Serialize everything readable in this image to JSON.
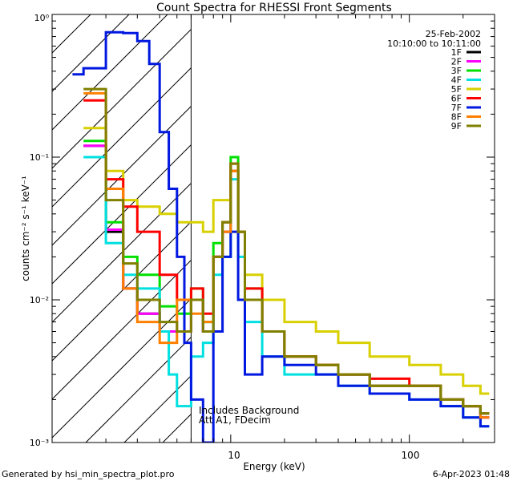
{
  "chart_data": {
    "type": "line",
    "title": "Count Spectra for RHESSI Front Segments",
    "xlabel": "Energy (keV)",
    "ylabel": "counts cm⁻² s⁻¹ keV⁻¹",
    "xscale": "log",
    "yscale": "log",
    "xlim": [
      1,
      300
    ],
    "ylim": [
      0.001,
      1
    ],
    "x_ticks": [
      "10",
      "100"
    ],
    "y_ticks": [
      "10⁻³",
      "10⁻²",
      "10⁻¹",
      "10⁰"
    ],
    "hatched_region_upper_keV": 6,
    "date": "25-Feb-2002",
    "time_range": "10:10:00 to 10:11:00",
    "annotations": [
      "Includes Background",
      "Att A1, FDecim"
    ],
    "footer_left": "Generated by hsi_min_spectra_plot.pro",
    "footer_right": "6-Apr-2023 01:48",
    "series": [
      {
        "name": "1F",
        "color": "#000000",
        "points": [
          [
            1.5,
            0.12
          ],
          [
            2,
            0.03
          ],
          [
            2.5,
            0.012
          ],
          [
            3,
            0.008
          ],
          [
            4,
            0.006
          ],
          [
            5,
            0.006
          ],
          [
            6,
            0.01
          ],
          [
            7,
            0.006
          ],
          [
            8,
            0.02
          ],
          [
            9,
            0.03
          ],
          [
            10,
            0.08
          ],
          [
            11,
            0.03
          ],
          [
            12,
            0.01
          ],
          [
            15,
            0.006
          ],
          [
            20,
            0.004
          ],
          [
            30,
            0.0035
          ],
          [
            40,
            0.003
          ],
          [
            60,
            0.0025
          ],
          [
            100,
            0.0025
          ],
          [
            150,
            0.002
          ],
          [
            200,
            0.0018
          ],
          [
            250,
            0.0015
          ]
        ]
      },
      {
        "name": "2F",
        "color": "#ff00ff",
        "points": [
          [
            1.5,
            0.12
          ],
          [
            2,
            0.031
          ],
          [
            2.5,
            0.012
          ],
          [
            3,
            0.008
          ],
          [
            4,
            0.006
          ],
          [
            5,
            0.006
          ],
          [
            6,
            0.01
          ],
          [
            7,
            0.006
          ],
          [
            8,
            0.02
          ],
          [
            9,
            0.03
          ],
          [
            10,
            0.08
          ],
          [
            11,
            0.03
          ],
          [
            12,
            0.01
          ],
          [
            15,
            0.006
          ],
          [
            20,
            0.004
          ],
          [
            30,
            0.0035
          ],
          [
            40,
            0.003
          ],
          [
            60,
            0.0025
          ],
          [
            100,
            0.0025
          ],
          [
            150,
            0.002
          ],
          [
            200,
            0.0018
          ],
          [
            250,
            0.0015
          ]
        ]
      },
      {
        "name": "3F",
        "color": "#00e000",
        "points": [
          [
            1.5,
            0.13
          ],
          [
            2,
            0.035
          ],
          [
            2.5,
            0.02
          ],
          [
            3,
            0.015
          ],
          [
            4,
            0.009
          ],
          [
            5,
            0.008
          ],
          [
            6,
            0.012
          ],
          [
            7,
            0.007
          ],
          [
            8,
            0.025
          ],
          [
            9,
            0.035
          ],
          [
            10,
            0.1
          ],
          [
            11,
            0.03
          ],
          [
            12,
            0.012
          ],
          [
            15,
            0.006
          ],
          [
            20,
            0.004
          ],
          [
            30,
            0.0035
          ],
          [
            40,
            0.003
          ],
          [
            60,
            0.0025
          ],
          [
            100,
            0.0025
          ],
          [
            150,
            0.002
          ],
          [
            200,
            0.0018
          ],
          [
            250,
            0.0016
          ]
        ]
      },
      {
        "name": "4F",
        "color": "#00e0e0",
        "points": [
          [
            1.5,
            0.1
          ],
          [
            2,
            0.025
          ],
          [
            2.5,
            0.015
          ],
          [
            3,
            0.012
          ],
          [
            4,
            0.006
          ],
          [
            4.5,
            0.003
          ],
          [
            5,
            0.0018
          ],
          [
            6,
            0.004
          ],
          [
            7,
            0.005
          ],
          [
            8,
            0.015
          ],
          [
            9,
            0.02
          ],
          [
            10,
            0.07
          ],
          [
            11,
            0.02
          ],
          [
            12,
            0.007
          ],
          [
            15,
            0.004
          ],
          [
            20,
            0.003
          ],
          [
            30,
            0.003
          ],
          [
            40,
            0.0025
          ],
          [
            60,
            0.0022
          ],
          [
            100,
            0.002
          ],
          [
            150,
            0.0018
          ],
          [
            200,
            0.0015
          ],
          [
            250,
            0.0013
          ]
        ]
      },
      {
        "name": "5F",
        "color": "#d8d000",
        "points": [
          [
            1.5,
            0.16
          ],
          [
            2,
            0.08
          ],
          [
            2.5,
            0.05
          ],
          [
            3,
            0.045
          ],
          [
            4,
            0.04
          ],
          [
            5,
            0.035
          ],
          [
            6,
            0.035
          ],
          [
            7,
            0.03
          ],
          [
            8,
            0.05
          ],
          [
            9,
            0.05
          ],
          [
            10,
            0.08
          ],
          [
            11,
            0.03
          ],
          [
            12,
            0.015
          ],
          [
            15,
            0.01
          ],
          [
            20,
            0.007
          ],
          [
            30,
            0.006
          ],
          [
            40,
            0.005
          ],
          [
            60,
            0.004
          ],
          [
            100,
            0.0035
          ],
          [
            150,
            0.003
          ],
          [
            200,
            0.0025
          ],
          [
            250,
            0.0022
          ]
        ]
      },
      {
        "name": "6F",
        "color": "#ff0000",
        "points": [
          [
            1.5,
            0.25
          ],
          [
            2,
            0.07
          ],
          [
            2.5,
            0.045
          ],
          [
            3,
            0.03
          ],
          [
            4,
            0.015
          ],
          [
            5,
            0.01
          ],
          [
            6,
            0.012
          ],
          [
            7,
            0.008
          ],
          [
            8,
            0.02
          ],
          [
            9,
            0.035
          ],
          [
            10,
            0.09
          ],
          [
            11,
            0.03
          ],
          [
            12,
            0.012
          ],
          [
            15,
            0.006
          ],
          [
            20,
            0.004
          ],
          [
            30,
            0.0035
          ],
          [
            40,
            0.003
          ],
          [
            60,
            0.0028
          ],
          [
            100,
            0.0025
          ],
          [
            150,
            0.002
          ],
          [
            200,
            0.0018
          ],
          [
            250,
            0.0016
          ]
        ]
      },
      {
        "name": "7F",
        "color": "#0018e0",
        "points": [
          [
            1.3,
            0.38
          ],
          [
            1.5,
            0.42
          ],
          [
            2,
            0.75
          ],
          [
            2.5,
            0.74
          ],
          [
            3,
            0.65
          ],
          [
            3.5,
            0.45
          ],
          [
            4,
            0.15
          ],
          [
            4.5,
            0.06
          ],
          [
            5,
            0.02
          ],
          [
            5.5,
            0.005
          ],
          [
            6,
            0.002
          ],
          [
            7,
            0.001
          ],
          [
            8,
            0.006
          ],
          [
            9,
            0.02
          ],
          [
            10,
            0.03
          ],
          [
            11,
            0.01
          ],
          [
            12,
            0.003
          ],
          [
            15,
            0.004
          ],
          [
            20,
            0.0035
          ],
          [
            30,
            0.003
          ],
          [
            40,
            0.0025
          ],
          [
            60,
            0.0022
          ],
          [
            100,
            0.002
          ],
          [
            150,
            0.0018
          ],
          [
            200,
            0.0015
          ],
          [
            250,
            0.0013
          ]
        ]
      },
      {
        "name": "8F",
        "color": "#ff8000",
        "points": [
          [
            1.5,
            0.28
          ],
          [
            2,
            0.06
          ],
          [
            2.5,
            0.012
          ],
          [
            3,
            0.007
          ],
          [
            4,
            0.005
          ],
          [
            5,
            0.01
          ],
          [
            6,
            0.008
          ],
          [
            7,
            0.007
          ],
          [
            8,
            0.02
          ],
          [
            9,
            0.03
          ],
          [
            10,
            0.08
          ],
          [
            11,
            0.03
          ],
          [
            12,
            0.01
          ],
          [
            15,
            0.006
          ],
          [
            20,
            0.004
          ],
          [
            30,
            0.0035
          ],
          [
            40,
            0.003
          ],
          [
            60,
            0.0025
          ],
          [
            100,
            0.0025
          ],
          [
            150,
            0.002
          ],
          [
            200,
            0.0018
          ],
          [
            250,
            0.0015
          ]
        ]
      },
      {
        "name": "9F",
        "color": "#808000",
        "points": [
          [
            1.5,
            0.3
          ],
          [
            2,
            0.05
          ],
          [
            2.5,
            0.018
          ],
          [
            3,
            0.01
          ],
          [
            4,
            0.007
          ],
          [
            5,
            0.006
          ],
          [
            6,
            0.01
          ],
          [
            7,
            0.006
          ],
          [
            8,
            0.02
          ],
          [
            9,
            0.035
          ],
          [
            10,
            0.09
          ],
          [
            11,
            0.03
          ],
          [
            12,
            0.01
          ],
          [
            15,
            0.006
          ],
          [
            20,
            0.004
          ],
          [
            30,
            0.0035
          ],
          [
            40,
            0.003
          ],
          [
            60,
            0.0025
          ],
          [
            100,
            0.0025
          ],
          [
            150,
            0.002
          ],
          [
            200,
            0.0018
          ],
          [
            250,
            0.0016
          ]
        ]
      }
    ]
  }
}
